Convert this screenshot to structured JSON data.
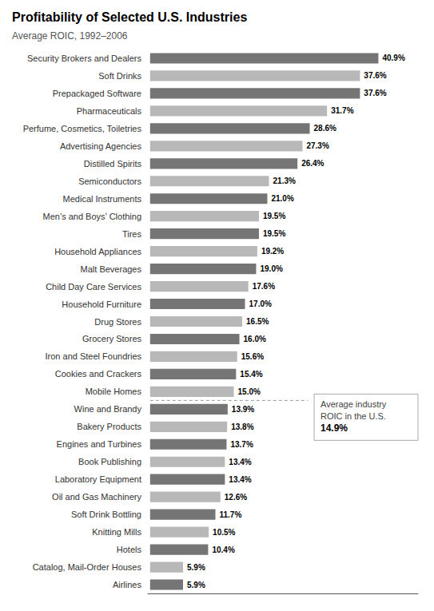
{
  "chart_data": {
    "type": "bar",
    "orientation": "horizontal",
    "title": "Profitability of Selected U.S. Industries",
    "subtitle": "Average ROIC, 1992–2006",
    "categories": [
      "Security Brokers and Dealers",
      "Soft Drinks",
      "Prepackaged Software",
      "Pharmaceuticals",
      "Perfume, Cosmetics, Toiletries",
      "Advertising Agencies",
      "Distilled Spirits",
      "Semiconductors",
      "Medical Instruments",
      "Men’s and Boys’ Clothing",
      "Tires",
      "Household Appliances",
      "Malt Beverages",
      "Child Day Care Services",
      "Household Furniture",
      "Drug Stores",
      "Grocery Stores",
      "Iron and Steel Foundries",
      "Cookies and Crackers",
      "Mobile Homes",
      "Wine and Brandy",
      "Bakery Products",
      "Engines and Turbines",
      "Book Publishing",
      "Laboratory Equipment",
      "Oil and Gas Machinery",
      "Soft Drink Bottling",
      "Knitting Mills",
      "Hotels",
      "Catalog, Mail-Order Houses",
      "Airlines"
    ],
    "values": [
      40.9,
      37.6,
      37.6,
      31.7,
      28.6,
      27.3,
      26.4,
      21.3,
      21.0,
      19.5,
      19.5,
      19.2,
      19.0,
      17.6,
      17.0,
      16.5,
      16.0,
      15.6,
      15.4,
      15.0,
      13.9,
      13.8,
      13.7,
      13.4,
      13.4,
      12.6,
      11.7,
      10.5,
      10.4,
      5.9,
      5.9
    ],
    "value_labels": [
      "40.9%",
      "37.6%",
      "37.6%",
      "31.7%",
      "28.6%",
      "27.3%",
      "26.4%",
      "21.3%",
      "21.0%",
      "19.5%",
      "19.5%",
      "19.2%",
      "19.0%",
      "17.6%",
      "17.0%",
      "16.5%",
      "16.0%",
      "15.6%",
      "15.4%",
      "15.0%",
      "13.9%",
      "13.8%",
      "13.7%",
      "13.4%",
      "13.4%",
      "12.6%",
      "11.7%",
      "10.5%",
      "10.4%",
      "5.9%",
      "5.9%"
    ],
    "colors": [
      "#757575",
      "#b8b8b8",
      "#757575",
      "#b8b8b8",
      "#757575",
      "#b8b8b8",
      "#757575",
      "#b8b8b8",
      "#757575",
      "#b8b8b8",
      "#757575",
      "#b8b8b8",
      "#757575",
      "#b8b8b8",
      "#757575",
      "#b8b8b8",
      "#757575",
      "#b8b8b8",
      "#757575",
      "#b8b8b8",
      "#757575",
      "#b8b8b8",
      "#757575",
      "#b8b8b8",
      "#757575",
      "#b8b8b8",
      "#757575",
      "#b8b8b8",
      "#757575",
      "#b8b8b8",
      "#757575"
    ],
    "xlim": [
      -0.4,
      48
    ],
    "data_labels": true,
    "tick_labels": "y",
    "grid": false,
    "annotation": {
      "value": 14.9,
      "text": [
        "Average industry",
        "ROIC in the U.S.",
        "14.9%"
      ]
    }
  }
}
